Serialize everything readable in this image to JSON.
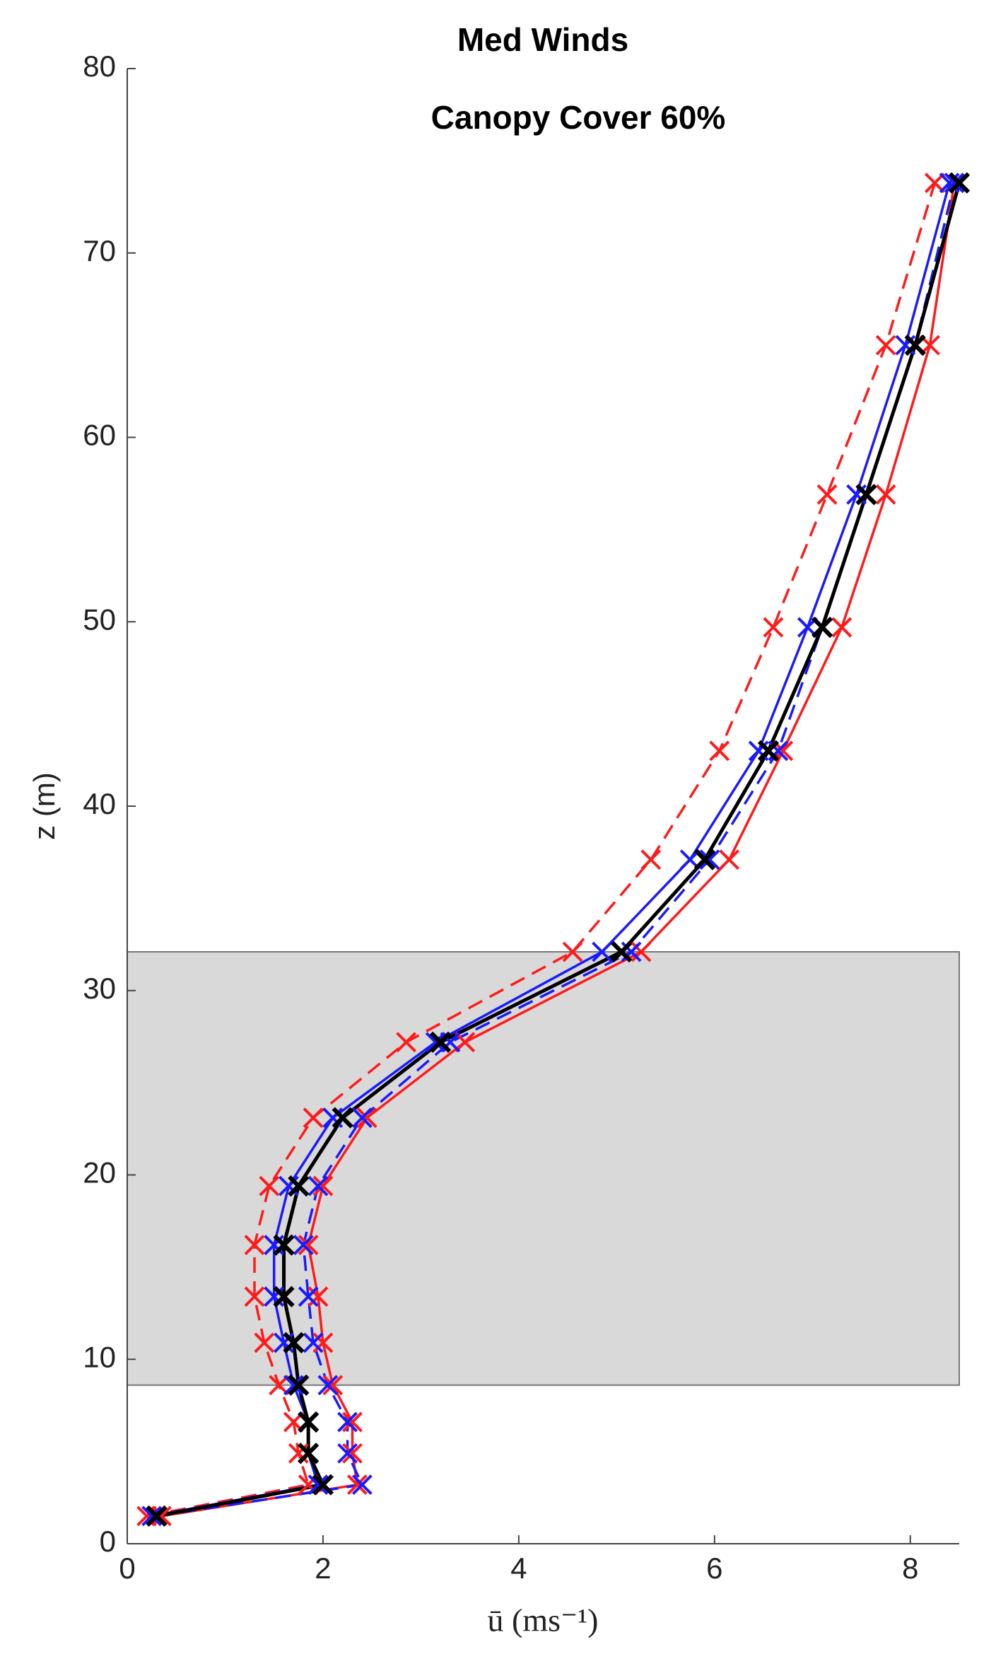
{
  "chart_data": {
    "type": "line",
    "title": "Med Winds",
    "subtitle": "Canopy Cover 60%",
    "x_label": "ū (ms⁻¹)",
    "y_label": "z (m)",
    "xlim": [
      0,
      8.5
    ],
    "xticks": [
      0,
      2,
      4,
      6,
      8
    ],
    "ylim": [
      0,
      80
    ],
    "yticks": [
      0,
      10,
      20,
      30,
      40,
      50,
      60,
      70,
      80
    ],
    "canopy": [
      8.6,
      32.1
    ],
    "canopy_color": "#d9d9d9",
    "marker": "x",
    "z": [
      1.5,
      3.2,
      4.9,
      6.6,
      8.6,
      10.9,
      13.4,
      16.2,
      19.4,
      23.1,
      27.2,
      32.1,
      37.1,
      43.0,
      49.7,
      56.9,
      65.0,
      73.8
    ],
    "series": [
      {
        "color": "#ff1a1a",
        "dash": true,
        "values": [
          0.2,
          1.85,
          1.75,
          1.7,
          1.55,
          1.4,
          1.3,
          1.3,
          1.45,
          1.9,
          2.85,
          4.55,
          5.35,
          6.05,
          6.6,
          7.15,
          7.75,
          8.25
        ]
      },
      {
        "color": "#ff1a1a",
        "dash": false,
        "values": [
          0.35,
          2.35,
          2.3,
          2.3,
          2.1,
          2.0,
          1.95,
          1.85,
          2.0,
          2.45,
          3.45,
          5.25,
          6.15,
          6.7,
          7.3,
          7.75,
          8.2,
          8.45
        ]
      },
      {
        "color": "#1a1aff",
        "dash": true,
        "values": [
          0.3,
          2.4,
          2.25,
          2.25,
          2.05,
          1.9,
          1.85,
          1.8,
          1.95,
          2.4,
          3.3,
          5.15,
          5.95,
          6.65,
          7.1,
          7.55,
          8.05,
          8.45
        ]
      },
      {
        "color": "#1a1aff",
        "dash": false,
        "values": [
          0.25,
          1.95,
          1.85,
          1.85,
          1.7,
          1.6,
          1.5,
          1.5,
          1.65,
          2.1,
          3.15,
          4.85,
          5.75,
          6.45,
          6.95,
          7.45,
          7.95,
          8.4
        ]
      },
      {
        "color": "#000000",
        "dash": false,
        "values": [
          0.3,
          2.0,
          1.85,
          1.85,
          1.75,
          1.7,
          1.6,
          1.6,
          1.75,
          2.2,
          3.2,
          5.05,
          5.9,
          6.55,
          7.1,
          7.55,
          8.05,
          8.5
        ]
      }
    ]
  }
}
